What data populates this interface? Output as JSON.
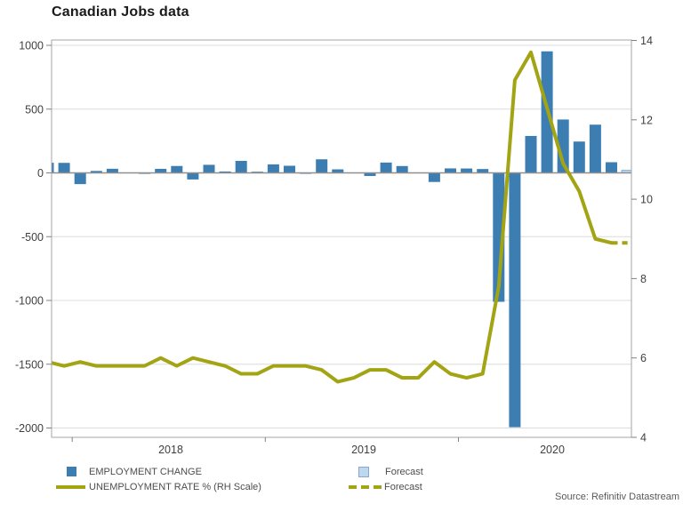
{
  "title": "Canadian Jobs data",
  "source": "Source: Refinitiv Datastream",
  "colors": {
    "bar": "#3d7eb2",
    "bar_forecast_fill": "#bdd7ee",
    "bar_forecast_border": "#85a9cf",
    "line": "#a3a414",
    "grid": "#dcdcdc",
    "zero_line": "#8f8f8f",
    "frame": "#a6a6a6",
    "tick": "#808080",
    "axis_text": "#404040"
  },
  "legend": {
    "items": [
      {
        "label": "EMPLOYMENT CHANGE",
        "swatch": "bar"
      },
      {
        "label": "Forecast",
        "swatch": "bar-forecast"
      },
      {
        "label": "UNEMPLOYMENT RATE % (RH Scale)",
        "swatch": "line"
      },
      {
        "label": "Forecast",
        "swatch": "line-dashed"
      }
    ]
  },
  "chart_data": {
    "type": "bar+line",
    "title": "Canadian Jobs data",
    "months": [
      "2017-11",
      "2017-12",
      "2018-01",
      "2018-02",
      "2018-03",
      "2018-04",
      "2018-05",
      "2018-06",
      "2018-07",
      "2018-08",
      "2018-09",
      "2018-10",
      "2018-11",
      "2018-12",
      "2019-01",
      "2019-02",
      "2019-03",
      "2019-04",
      "2019-05",
      "2019-06",
      "2019-07",
      "2019-08",
      "2019-09",
      "2019-10",
      "2019-11",
      "2019-12",
      "2020-01",
      "2020-02",
      "2020-03",
      "2020-04",
      "2020-05",
      "2020-06",
      "2020-07",
      "2020-08",
      "2020-09",
      "2020-10",
      "2020-11"
    ],
    "series": [
      {
        "name": "EMPLOYMENT CHANGE",
        "type": "bar",
        "axis": "left",
        "values": [
          79.5,
          78.6,
          -88.0,
          15.4,
          32.3,
          -1.1,
          -7.5,
          31.8,
          54.1,
          -51.6,
          63.3,
          11.2,
          94.1,
          9.3,
          66.8,
          55.9,
          -7.2,
          106.5,
          27.7,
          -2.2,
          -24.2,
          81.1,
          53.7,
          -1.8,
          -71.2,
          35.2,
          34.5,
          30.3,
          -1010.7,
          -1993.8,
          289.6,
          952.9,
          418.5,
          245.8,
          378.2,
          83.6,
          null
        ]
      },
      {
        "name": "Forecast",
        "type": "bar-forecast",
        "axis": "left",
        "values": [
          null,
          null,
          null,
          null,
          null,
          null,
          null,
          null,
          null,
          null,
          null,
          null,
          null,
          null,
          null,
          null,
          null,
          null,
          null,
          null,
          null,
          null,
          null,
          null,
          null,
          null,
          null,
          null,
          null,
          null,
          null,
          null,
          null,
          null,
          null,
          null,
          20
        ]
      },
      {
        "name": "UNEMPLOYMENT RATE % (RH Scale)",
        "type": "line",
        "axis": "right",
        "values": [
          5.9,
          5.8,
          5.9,
          5.8,
          5.8,
          5.8,
          5.8,
          6.0,
          5.8,
          6.0,
          5.9,
          5.8,
          5.6,
          5.6,
          5.8,
          5.8,
          5.8,
          5.7,
          5.4,
          5.5,
          5.7,
          5.7,
          5.5,
          5.5,
          5.9,
          5.6,
          5.5,
          5.6,
          7.8,
          13.0,
          13.7,
          12.3,
          10.9,
          10.2,
          9.0,
          8.9,
          null
        ]
      },
      {
        "name": "Forecast",
        "type": "line-dashed",
        "axis": "right",
        "values": [
          null,
          null,
          null,
          null,
          null,
          null,
          null,
          null,
          null,
          null,
          null,
          null,
          null,
          null,
          null,
          null,
          null,
          null,
          null,
          null,
          null,
          null,
          null,
          null,
          null,
          null,
          null,
          null,
          null,
          null,
          null,
          null,
          null,
          null,
          null,
          8.9,
          8.9
        ]
      }
    ],
    "left_axis": {
      "ticks": [
        1000,
        500,
        0,
        -500,
        -1000,
        -1500,
        -2000
      ],
      "tick_labels": [
        "1000",
        "500",
        "0",
        "-500",
        "-1000",
        "-1500",
        "-2000"
      ],
      "range": [
        -2000,
        1000
      ],
      "grid": true
    },
    "right_axis": {
      "ticks": [
        14,
        12,
        10,
        8,
        6,
        4
      ],
      "tick_labels": [
        "14",
        "12",
        "10",
        "8",
        "6",
        "4"
      ],
      "range": [
        4,
        14
      ],
      "grid": false
    },
    "x_axis": {
      "year_labels": [
        "2018",
        "2019",
        "2020"
      ]
    },
    "legend_position": "bottom"
  }
}
